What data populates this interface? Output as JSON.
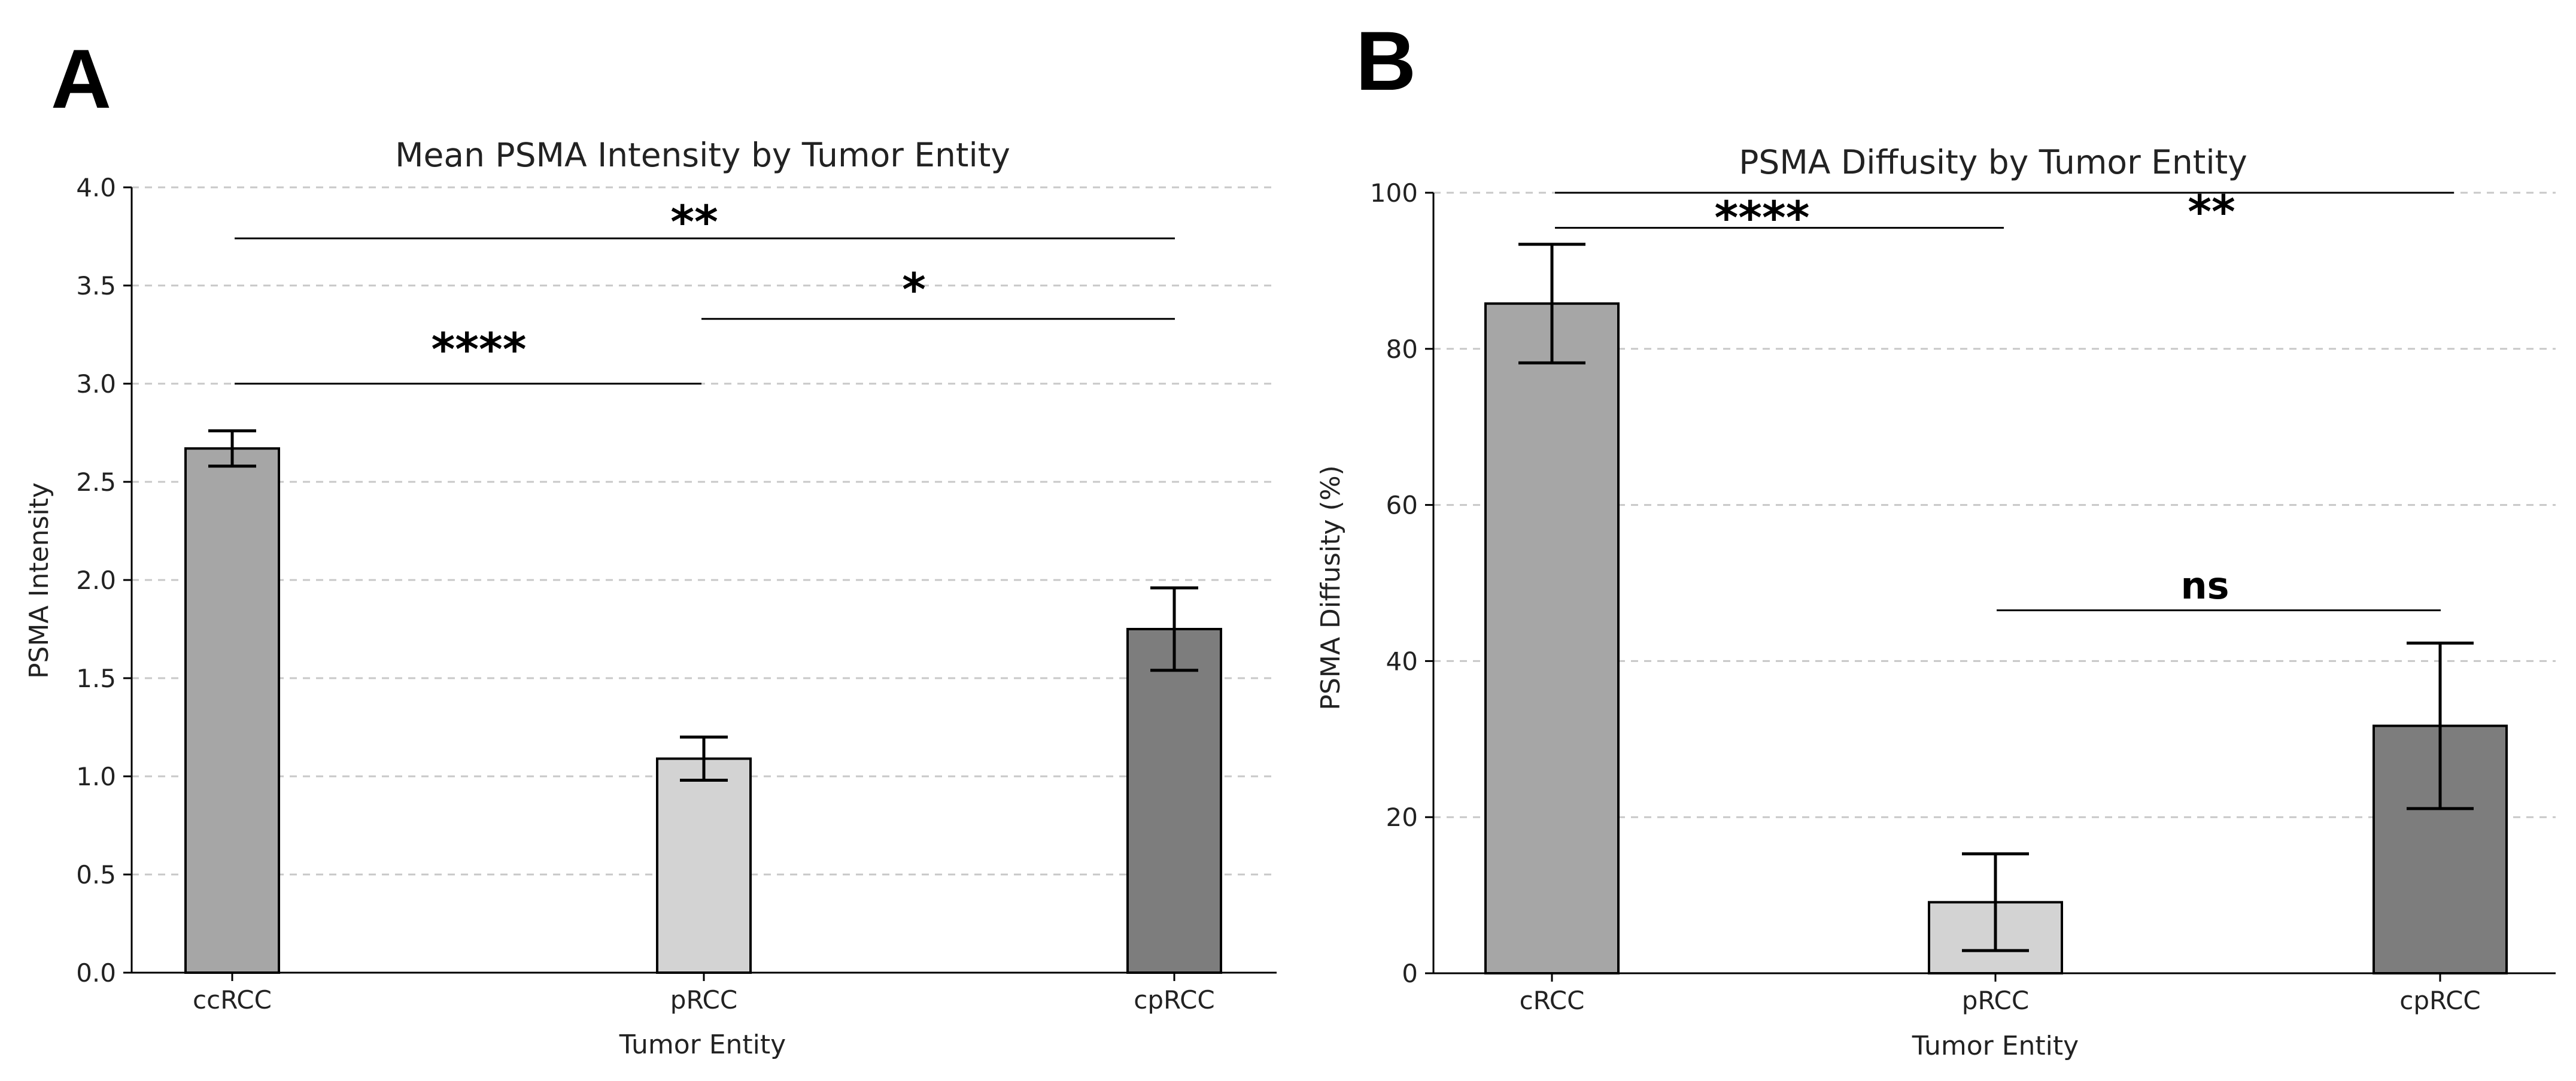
{
  "chart_data": [
    {
      "type": "bar",
      "panel_label": "A",
      "title": "Mean PSMA Intensity by Tumor Entity",
      "xlabel": "Tumor Entity",
      "ylabel": "PSMA Intensity",
      "categories": [
        "ccRCC",
        "pRCC",
        "cpRCC"
      ],
      "values": [
        2.67,
        1.09,
        1.75
      ],
      "errors": [
        0.09,
        0.11,
        0.21
      ],
      "bar_colors": [
        "#a6a6a6",
        "#d3d3d3",
        "#7d7d7d"
      ],
      "ylim": [
        0,
        4.0
      ],
      "yticks": [
        "0.0",
        "0.5",
        "1.0",
        "1.5",
        "2.0",
        "2.5",
        "3.0",
        "3.5",
        "4.0"
      ],
      "grid": true,
      "significance": [
        {
          "from": 0,
          "to": 2,
          "y": 3.74,
          "label": "**"
        },
        {
          "from": 1,
          "to": 2,
          "y": 3.33,
          "label": "*"
        },
        {
          "from": 0,
          "to": 1,
          "y": 3.0,
          "label": "****"
        }
      ]
    },
    {
      "type": "bar",
      "panel_label": "B",
      "title": "PSMA Diffusity by Tumor Entity",
      "xlabel": "Tumor Entity",
      "ylabel": "PSMA Diffusity (%)",
      "categories": [
        "cRCC",
        "pRCC",
        "cpRCC"
      ],
      "values": [
        85.8,
        9.1,
        31.7
      ],
      "errors": [
        7.6,
        6.2,
        10.6
      ],
      "bar_colors": [
        "#a6a6a6",
        "#d3d3d3",
        "#7d7d7d"
      ],
      "ylim": [
        0,
        100
      ],
      "yticks": [
        "0",
        "20",
        "40",
        "60",
        "80",
        "100"
      ],
      "grid": true,
      "significance": [
        {
          "from": 0,
          "to": 2,
          "y": 100,
          "label": "**"
        },
        {
          "from": 0,
          "to": 1,
          "y": 95.5,
          "label": "****"
        },
        {
          "from": 1,
          "to": 2,
          "y": 46.5,
          "label": "ns"
        }
      ]
    }
  ]
}
